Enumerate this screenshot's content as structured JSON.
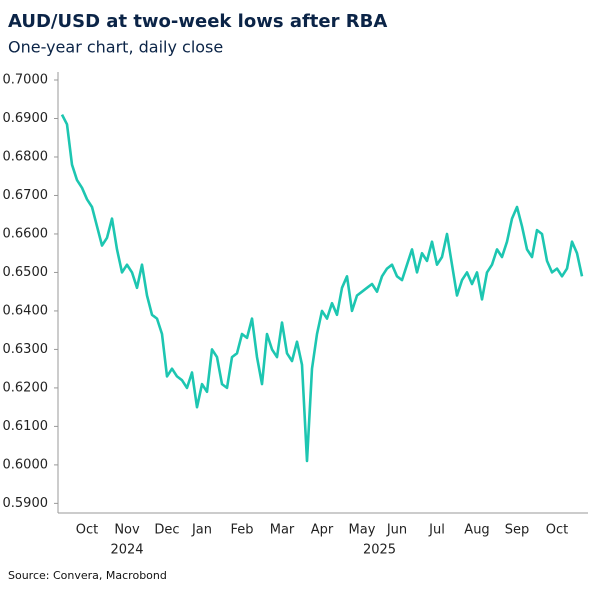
{
  "chart_data": {
    "type": "line",
    "title": "AUD/USD at two-week lows after RBA",
    "subtitle": "One-year chart, daily close",
    "source": "Source: Convera, Macrobond",
    "categories": [
      null,
      null,
      null,
      null,
      null,
      "Oct",
      null,
      null,
      null,
      null,
      null,
      null,
      null,
      "Nov",
      null,
      null,
      null,
      null,
      null,
      null,
      null,
      "Dec",
      null,
      null,
      null,
      null,
      null,
      null,
      "Jan",
      null,
      null,
      null,
      null,
      null,
      null,
      null,
      "Feb",
      null,
      null,
      null,
      null,
      null,
      null,
      null,
      "Mar",
      null,
      null,
      null,
      null,
      null,
      null,
      null,
      "Apr",
      null,
      null,
      null,
      null,
      null,
      null,
      null,
      "May",
      null,
      null,
      null,
      null,
      null,
      null,
      "Jun",
      null,
      null,
      null,
      null,
      null,
      null,
      null,
      "Jul",
      null,
      null,
      null,
      null,
      null,
      null,
      null,
      "Aug",
      null,
      null,
      null,
      null,
      null,
      null,
      null,
      "Sep",
      null,
      null,
      null,
      null,
      null,
      null,
      null,
      "Oct",
      null,
      null,
      null,
      null,
      null
    ],
    "category_groups": [
      {
        "label": "2024",
        "categories": [
          "Oct",
          "Nov",
          "Dec"
        ]
      },
      {
        "label": "2025",
        "categories": [
          "Jan",
          "Feb",
          "Mar",
          "Apr",
          "May",
          "Jun",
          "Jul",
          "Aug",
          "Sep",
          "Oct"
        ]
      }
    ],
    "series": [
      {
        "name": "AUD/USD",
        "color": "#1dc6b1",
        "values": [
          0.691,
          0.6885,
          0.678,
          0.674,
          0.672,
          0.669,
          0.667,
          0.662,
          0.657,
          0.659,
          0.664,
          0.656,
          0.65,
          0.652,
          0.65,
          0.646,
          0.652,
          0.644,
          0.639,
          0.638,
          0.634,
          0.623,
          0.625,
          0.623,
          0.622,
          0.62,
          0.624,
          0.615,
          0.621,
          0.619,
          0.63,
          0.628,
          0.621,
          0.62,
          0.628,
          0.629,
          0.634,
          0.633,
          0.638,
          0.628,
          0.621,
          0.634,
          0.63,
          0.628,
          0.637,
          0.629,
          0.627,
          0.632,
          0.626,
          0.601,
          0.625,
          0.634,
          0.64,
          0.638,
          0.642,
          0.639,
          0.646,
          0.649,
          0.64,
          0.644,
          0.645,
          0.646,
          0.647,
          0.645,
          0.649,
          0.651,
          0.652,
          0.649,
          0.648,
          0.652,
          0.656,
          0.65,
          0.655,
          0.653,
          0.658,
          0.652,
          0.654,
          0.66,
          0.652,
          0.644,
          0.648,
          0.65,
          0.647,
          0.65,
          0.643,
          0.65,
          0.652,
          0.656,
          0.654,
          0.658,
          0.664,
          0.667,
          0.662,
          0.656,
          0.654,
          0.661,
          0.66,
          0.653,
          0.65,
          0.651,
          0.649,
          0.651,
          0.658,
          0.655,
          0.649
        ]
      }
    ],
    "ylim": [
      0.5875,
      0.7
    ],
    "yticks": [
      {
        "value": 0.59,
        "label": "0.5900"
      },
      {
        "value": 0.6,
        "label": "0.6000"
      },
      {
        "value": 0.61,
        "label": "0.6100"
      },
      {
        "value": 0.62,
        "label": "0.6200"
      },
      {
        "value": 0.63,
        "label": "0.6300"
      },
      {
        "value": 0.64,
        "label": "0.6400"
      },
      {
        "value": 0.65,
        "label": "0.6500"
      },
      {
        "value": 0.66,
        "label": "0.6600"
      },
      {
        "value": 0.67,
        "label": "0.6700"
      },
      {
        "value": 0.68,
        "label": "0.6800"
      },
      {
        "value": 0.69,
        "label": "0.6900"
      },
      {
        "value": 0.7,
        "label": "0.7000"
      }
    ],
    "grid": false
  }
}
